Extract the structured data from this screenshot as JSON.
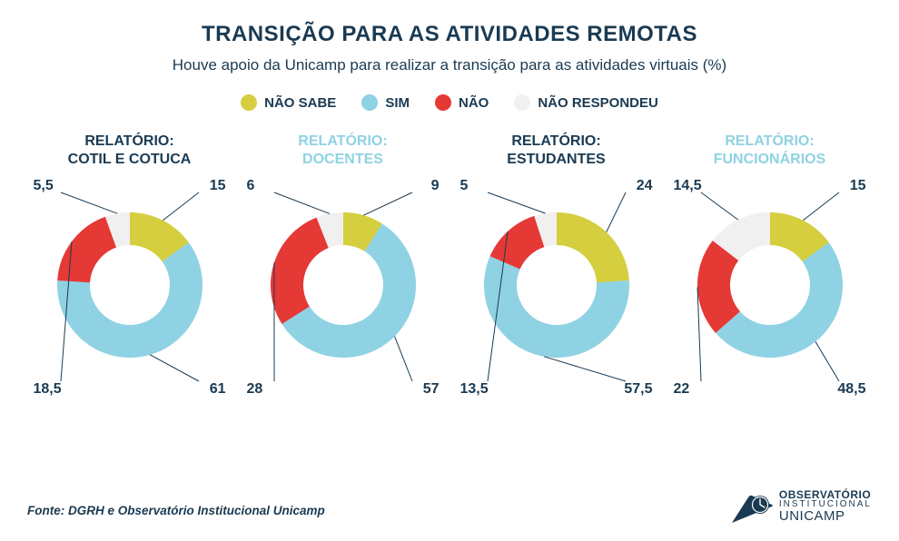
{
  "title": "TRANSIÇÃO PARA AS ATIVIDADES REMOTAS",
  "subtitle": "Houve apoio da Unicamp para realizar a transição para as atividades virtuais (%)",
  "legend": [
    {
      "label": "NÃO SABE",
      "color": "#d5ce3f"
    },
    {
      "label": "SIM",
      "color": "#8fd2e3"
    },
    {
      "label": "NÃO",
      "color": "#e53935"
    },
    {
      "label": "NÃO RESPONDEU",
      "color": "#f0f0f0"
    }
  ],
  "global_style": {
    "outer_radius": 80,
    "inner_radius": 44,
    "title_color": "#1a3a52",
    "chart_title_colors": [
      "#1a3a52",
      "#8fd2e3"
    ],
    "background": "#ffffff",
    "font_family": "Arial",
    "title_fontsize": 24,
    "subtitle_fontsize": 17,
    "legend_fontsize": 15,
    "chart_title_fontsize": 16,
    "value_label_fontsize": 16
  },
  "charts": [
    {
      "title_line1": "RELATÓRIO:",
      "title_line2": "COTIL E COTUCA",
      "title_color": "#1a3a52",
      "slices": [
        {
          "key": "nao_sabe",
          "value": 15,
          "label": "15",
          "color": "#d5ce3f",
          "corner": "tr"
        },
        {
          "key": "sim",
          "value": 61,
          "label": "61",
          "color": "#8fd2e3",
          "corner": "br"
        },
        {
          "key": "nao",
          "value": 18.5,
          "label": "18,5",
          "color": "#e53935",
          "corner": "bl"
        },
        {
          "key": "nao_respondeu",
          "value": 5.5,
          "label": "5,5",
          "color": "#f0f0f0",
          "corner": "tl"
        }
      ]
    },
    {
      "title_line1": "RELATÓRIO:",
      "title_line2": "DOCENTES",
      "title_color": "#8fd2e3",
      "slices": [
        {
          "key": "nao_sabe",
          "value": 9,
          "label": "9",
          "color": "#d5ce3f",
          "corner": "tr"
        },
        {
          "key": "sim",
          "value": 57,
          "label": "57",
          "color": "#8fd2e3",
          "corner": "br"
        },
        {
          "key": "nao",
          "value": 28,
          "label": "28",
          "color": "#e53935",
          "corner": "bl"
        },
        {
          "key": "nao_respondeu",
          "value": 6,
          "label": "6",
          "color": "#f0f0f0",
          "corner": "tl"
        }
      ]
    },
    {
      "title_line1": "RELATÓRIO:",
      "title_line2": "ESTUDANTES",
      "title_color": "#1a3a52",
      "slices": [
        {
          "key": "nao_sabe",
          "value": 24,
          "label": "24",
          "color": "#d5ce3f",
          "corner": "tr"
        },
        {
          "key": "sim",
          "value": 57.5,
          "label": "57,5",
          "color": "#8fd2e3",
          "corner": "br"
        },
        {
          "key": "nao",
          "value": 13.5,
          "label": "13,5",
          "color": "#e53935",
          "corner": "bl"
        },
        {
          "key": "nao_respondeu",
          "value": 5,
          "label": "5",
          "color": "#f0f0f0",
          "corner": "tl"
        }
      ]
    },
    {
      "title_line1": "RELATÓRIO:",
      "title_line2": "FUNCIONÁRIOS",
      "title_color": "#8fd2e3",
      "slices": [
        {
          "key": "nao_sabe",
          "value": 15,
          "label": "15",
          "color": "#d5ce3f",
          "corner": "tr"
        },
        {
          "key": "sim",
          "value": 48.5,
          "label": "48,5",
          "color": "#8fd2e3",
          "corner": "br"
        },
        {
          "key": "nao",
          "value": 22,
          "label": "22",
          "color": "#e53935",
          "corner": "bl"
        },
        {
          "key": "nao_respondeu",
          "value": 14.5,
          "label": "14,5",
          "color": "#f0f0f0",
          "corner": "tl"
        }
      ]
    }
  ],
  "footer": "Fonte: DGRH e Observatório Institucional Unicamp",
  "logo": {
    "line1": "OBSERVATÓRIO",
    "line2": "INSTITUCIONAL",
    "line3": "UNICAMP",
    "color": "#1a3a52"
  }
}
